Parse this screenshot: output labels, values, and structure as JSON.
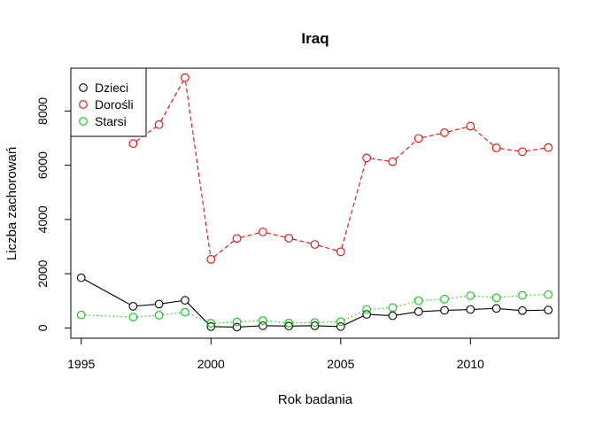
{
  "chart_data": {
    "type": "line",
    "title": "Iraq",
    "xlabel": "Rok badania",
    "ylabel": "Liczba zachorowań",
    "xlim": [
      1994.6,
      2013.4
    ],
    "ylim": [
      -380,
      9580
    ],
    "xticks": [
      1995,
      2000,
      2005,
      2010
    ],
    "yticks": [
      0,
      2000,
      4000,
      6000,
      8000
    ],
    "grid": false,
    "legend_position": "top-left",
    "series": [
      {
        "name": "Dzieci",
        "color": "#000000",
        "line_style": "solid",
        "x": [
          1995,
          1997,
          1998,
          1999,
          2000,
          2001,
          2002,
          2003,
          2004,
          2005,
          2006,
          2007,
          2008,
          2009,
          2010,
          2011,
          2012,
          2013
        ],
        "y": [
          1850,
          800,
          880,
          1020,
          50,
          30,
          80,
          70,
          80,
          50,
          500,
          450,
          600,
          650,
          680,
          720,
          640,
          660
        ]
      },
      {
        "name": "Dorośli",
        "color": "#ff0000",
        "line_style": "dashed",
        "x": [
          1997,
          1998,
          1999,
          2000,
          2001,
          2002,
          2003,
          2004,
          2005,
          2006,
          2007,
          2008,
          2009,
          2010,
          2011,
          2012,
          2013
        ],
        "y": [
          6800,
          7500,
          9230,
          2530,
          3300,
          3540,
          3310,
          3080,
          2810,
          6270,
          6130,
          6990,
          7200,
          7440,
          6640,
          6500,
          6650
        ]
      },
      {
        "name": "Starsi",
        "color": "#00cd00",
        "line_style": "dotted",
        "x": [
          1995,
          1997,
          1998,
          1999,
          2000,
          2001,
          2002,
          2003,
          2004,
          2005,
          2006,
          2007,
          2008,
          2009,
          2010,
          2011,
          2012,
          2013
        ],
        "y": [
          480,
          400,
          470,
          580,
          170,
          220,
          270,
          180,
          200,
          230,
          680,
          750,
          1000,
          1060,
          1190,
          1110,
          1200,
          1230
        ]
      }
    ]
  }
}
